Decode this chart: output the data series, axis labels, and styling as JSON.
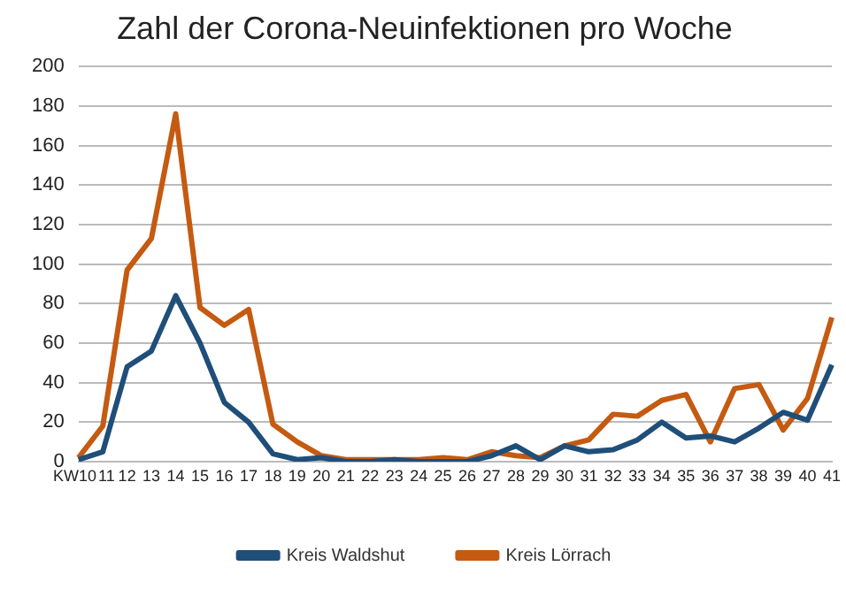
{
  "chart_data": {
    "type": "line",
    "title": "Zahl der Corona-Neuinfektionen pro Woche",
    "categories": [
      "KW10",
      "11",
      "12",
      "13",
      "14",
      "15",
      "16",
      "17",
      "18",
      "19",
      "20",
      "21",
      "22",
      "23",
      "24",
      "25",
      "26",
      "27",
      "28",
      "29",
      "30",
      "31",
      "32",
      "33",
      "34",
      "35",
      "36",
      "37",
      "38",
      "39",
      "40",
      "41"
    ],
    "series": [
      {
        "name": "Kreis Waldshut",
        "color": "#1f4e79",
        "values": [
          1,
          5,
          48,
          56,
          84,
          60,
          30,
          20,
          4,
          1,
          2,
          0,
          0,
          1,
          0,
          0,
          0,
          3,
          8,
          1,
          8,
          5,
          6,
          11,
          20,
          12,
          13,
          10,
          17,
          25,
          21,
          49
        ]
      },
      {
        "name": "Kreis Lörrach",
        "color": "#c55a11",
        "values": [
          2,
          18,
          97,
          113,
          176,
          78,
          69,
          77,
          19,
          10,
          3,
          1,
          1,
          1,
          1,
          2,
          1,
          5,
          3,
          2,
          8,
          11,
          24,
          23,
          31,
          34,
          10,
          37,
          39,
          16,
          32,
          73
        ]
      }
    ],
    "ylim": [
      0,
      200
    ],
    "yticks": [
      0,
      20,
      40,
      60,
      80,
      100,
      120,
      140,
      160,
      180,
      200
    ],
    "grid": "y",
    "legend": "bottom",
    "marker": "none",
    "line_style": "solid"
  }
}
